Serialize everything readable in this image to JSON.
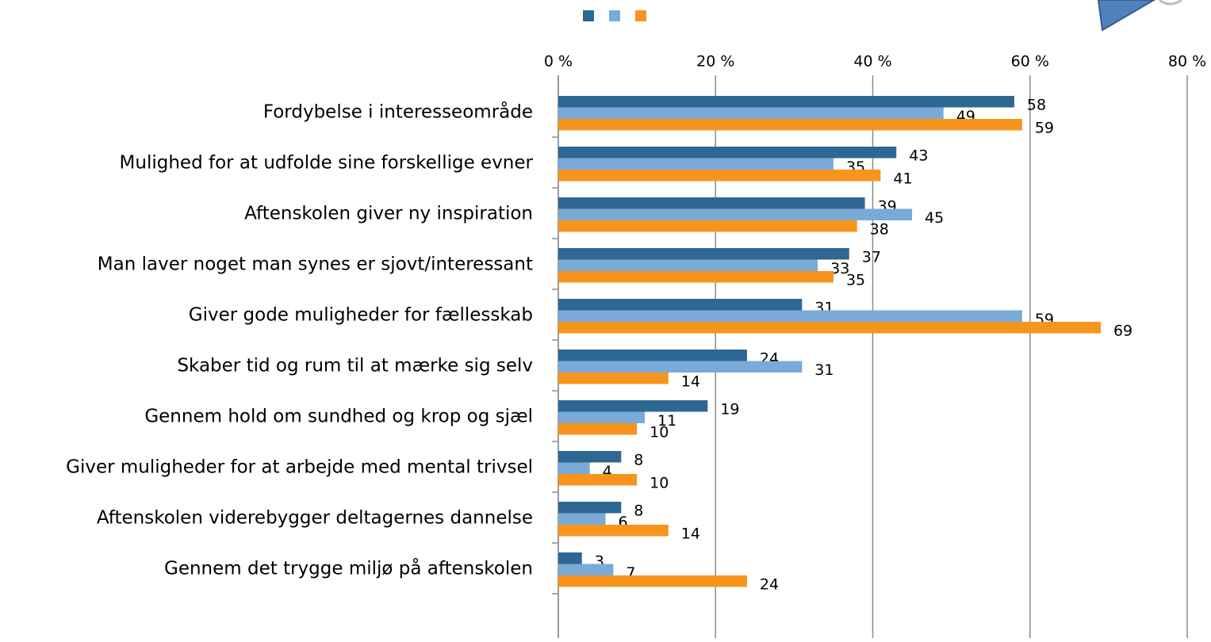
{
  "chart_data": {
    "type": "hbar",
    "categories": [
      "Fordybelse i interesseområde",
      "Mulighed for at udfolde sine forskellige evner",
      "Aftenskolen giver ny inspiration",
      "Man laver noget man synes er sjovt/interessant",
      "Giver gode muligheder for fællesskab",
      "Skaber tid og rum til at mærke sig selv",
      "Gennem hold om sundhed og krop og sjæl",
      "Giver muligheder for at arbejde med mental trivsel",
      "Aftenskolen viderebygger deltagernes dannelse",
      "Gennem det trygge miljø på aftenskolen"
    ],
    "series": [
      {
        "color": "#2e6892",
        "values": [
          58,
          43,
          39,
          37,
          31,
          24,
          19,
          8,
          8,
          3
        ]
      },
      {
        "color": "#7aaad8",
        "values": [
          49,
          35,
          45,
          33,
          59,
          31,
          11,
          4,
          6,
          7
        ]
      },
      {
        "color": "#f7941d",
        "values": [
          59,
          41,
          38,
          35,
          69,
          14,
          10,
          10,
          14,
          24
        ]
      }
    ],
    "xlim": [
      0,
      80
    ],
    "xticks": [
      {
        "value": 0,
        "label": "0 %"
      },
      {
        "value": 20,
        "label": "20 %"
      },
      {
        "value": 40,
        "label": "40 %"
      },
      {
        "value": 60,
        "label": "60 %"
      },
      {
        "value": 80,
        "label": "80 %"
      }
    ],
    "grid": true,
    "legend": "top"
  }
}
